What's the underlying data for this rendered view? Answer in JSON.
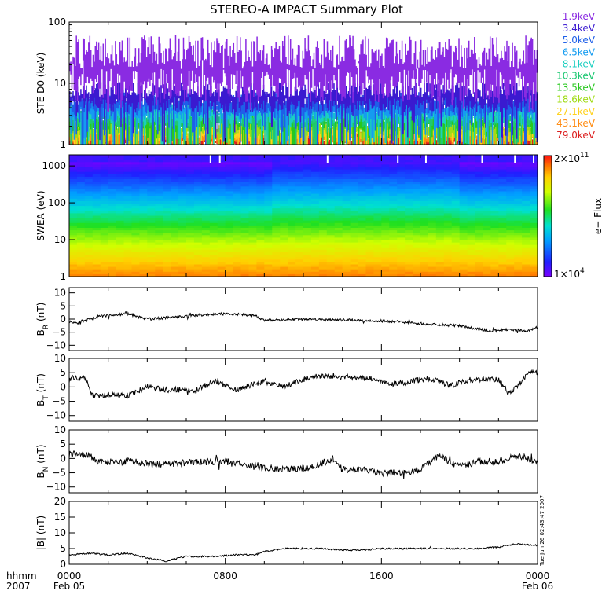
{
  "title": "STEREO-A IMPACT Summary Plot",
  "timestamp": "Tue Jun 26 02:43:47 2007",
  "chart_data": [
    {
      "type": "line",
      "ylabel": "STE D0 (keV)",
      "yscale": "log",
      "ylim": [
        1,
        100
      ],
      "ytick_labels": [
        "1",
        "10",
        "100"
      ],
      "series": [
        {
          "name": "1.9keV",
          "color": "#8a2be2",
          "level": 25,
          "spread": 0.55,
          "dips": 0.1
        },
        {
          "name": "3.4keV",
          "color": "#3a1ad0",
          "level": 7,
          "spread": 0.25,
          "dips": 0.15
        },
        {
          "name": "5.0keV",
          "color": "#1e5fe8",
          "level": 5.2,
          "spread": 0.2,
          "dips": 0.2
        },
        {
          "name": "6.5keV",
          "color": "#159cf0",
          "level": 4.3,
          "spread": 0.18,
          "dips": 0.22
        },
        {
          "name": "8.1keV",
          "color": "#1ccfc0",
          "level": 3.6,
          "spread": 0.17,
          "dips": 0.25
        },
        {
          "name": "10.3keV",
          "color": "#1ec873",
          "level": 3.0,
          "spread": 0.16,
          "dips": 0.28
        },
        {
          "name": "13.5keV",
          "color": "#28c81e",
          "level": 2.5,
          "spread": 0.15,
          "dips": 0.3
        },
        {
          "name": "18.6keV",
          "color": "#a0dc14",
          "level": 2.0,
          "spread": 0.15,
          "dips": 0.3
        },
        {
          "name": "27.1keV",
          "color": "#ffd21e",
          "level": 1.7,
          "spread": 0.15,
          "dips": 0.3
        },
        {
          "name": "43.1keV",
          "color": "#ff8c14",
          "level": 1.45,
          "spread": 0.15,
          "dips": 0.35
        },
        {
          "name": "79.0keV",
          "color": "#dc1e1e",
          "level": 1.25,
          "spread": 0.15,
          "dips": 0.4
        }
      ]
    },
    {
      "type": "heatmap",
      "ylabel": "SWEA (eV)",
      "yscale": "log",
      "ylim": [
        1,
        2000
      ],
      "ytick_labels": [
        "1",
        "10",
        "100",
        "1000"
      ],
      "colorbar": {
        "label": "e− Flux",
        "max_label": "2×10",
        "max_exp": "11",
        "min_label": "1×10",
        "min_exp": "4"
      }
    },
    {
      "type": "line",
      "ylabel": "B",
      "ylabel_sub": "R",
      "ylabel_unit": "(nT)",
      "ylim": [
        -12,
        12
      ],
      "yticks": [
        -10,
        -5,
        0,
        5,
        10
      ],
      "ytick_labels": [
        "−10",
        "−5",
        "0",
        "5",
        "10"
      ],
      "knots": [
        [
          0,
          -1
        ],
        [
          0.5,
          -1.5
        ],
        [
          1.5,
          1
        ],
        [
          3,
          2
        ],
        [
          4,
          0
        ],
        [
          5,
          0.5
        ],
        [
          6.5,
          1.5
        ],
        [
          8,
          2
        ],
        [
          9.5,
          1.5
        ],
        [
          10,
          -0.5
        ],
        [
          12,
          0
        ],
        [
          15,
          -0.5
        ],
        [
          17,
          -1
        ],
        [
          18.5,
          -2
        ],
        [
          20,
          -2.5
        ],
        [
          21.5,
          -4.5
        ],
        [
          22.5,
          -4
        ],
        [
          23.5,
          -4.5
        ],
        [
          24,
          -3
        ]
      ],
      "noise": 0.5,
      "seed": 11
    },
    {
      "type": "line",
      "ylabel": "B",
      "ylabel_sub": "T",
      "ylabel_unit": "(nT)",
      "ylim": [
        -12,
        10
      ],
      "yticks": [
        -10,
        -5,
        0,
        5,
        10
      ],
      "ytick_labels": [
        "−10",
        "−5",
        "0",
        "5",
        "10"
      ],
      "knots": [
        [
          0,
          3
        ],
        [
          0.8,
          3.5
        ],
        [
          1.2,
          -3
        ],
        [
          3,
          -3
        ],
        [
          4,
          0
        ],
        [
          5,
          -1
        ],
        [
          6.5,
          -1
        ],
        [
          7.5,
          2
        ],
        [
          8.5,
          -1
        ],
        [
          10,
          2
        ],
        [
          11,
          0
        ],
        [
          12.5,
          4
        ],
        [
          14,
          3.5
        ],
        [
          15.5,
          3
        ],
        [
          16.5,
          1
        ],
        [
          17.5,
          2
        ],
        [
          18.5,
          3
        ],
        [
          19.5,
          0.5
        ],
        [
          20.5,
          2.5
        ],
        [
          22,
          2.5
        ],
        [
          22.5,
          -2
        ],
        [
          23,
          0
        ],
        [
          23.5,
          5
        ],
        [
          24,
          5
        ]
      ],
      "noise": 1.0,
      "seed": 23
    },
    {
      "type": "line",
      "ylabel": "B",
      "ylabel_sub": "N",
      "ylabel_unit": "(nT)",
      "ylim": [
        -12,
        10
      ],
      "yticks": [
        -10,
        -5,
        0,
        5,
        10
      ],
      "ytick_labels": [
        "−10",
        "−5",
        "0",
        "5",
        "10"
      ],
      "knots": [
        [
          0,
          1.5
        ],
        [
          1,
          1.5
        ],
        [
          1.5,
          -1.5
        ],
        [
          3,
          -1
        ],
        [
          4.5,
          -2
        ],
        [
          6,
          -1.5
        ],
        [
          8,
          -1
        ],
        [
          9.5,
          -3
        ],
        [
          11,
          -4
        ],
        [
          12.5,
          -3
        ],
        [
          13.5,
          0
        ],
        [
          14,
          -4
        ],
        [
          15,
          -4
        ],
        [
          16,
          -5
        ],
        [
          17,
          -5
        ],
        [
          18,
          -4
        ],
        [
          19,
          1
        ],
        [
          20,
          -3
        ],
        [
          21,
          -1
        ],
        [
          22,
          -1
        ],
        [
          23,
          1
        ],
        [
          24,
          -1
        ]
      ],
      "noise": 1.2,
      "seed": 37
    },
    {
      "type": "line",
      "ylabel": "|B| (nT)",
      "ylim": [
        0,
        20
      ],
      "yticks": [
        0,
        5,
        10,
        15,
        20
      ],
      "ytick_labels": [
        "0",
        "5",
        "10",
        "15",
        "20"
      ],
      "knots": [
        [
          0,
          3
        ],
        [
          1,
          3.5
        ],
        [
          2,
          3
        ],
        [
          3,
          3.5
        ],
        [
          4,
          2
        ],
        [
          5,
          1
        ],
        [
          6,
          2.5
        ],
        [
          7.5,
          2.5
        ],
        [
          8.5,
          3
        ],
        [
          9.5,
          3
        ],
        [
          10,
          4
        ],
        [
          11,
          5
        ],
        [
          12,
          5
        ],
        [
          13,
          5
        ],
        [
          14,
          4.5
        ],
        [
          15,
          4.5
        ],
        [
          16,
          5
        ],
        [
          17,
          5
        ],
        [
          18,
          5
        ],
        [
          19,
          5
        ],
        [
          20,
          5
        ],
        [
          21,
          5
        ],
        [
          22,
          5.5
        ],
        [
          23,
          6.5
        ],
        [
          24,
          6
        ]
      ],
      "noise": 0.25,
      "seed": 51
    }
  ],
  "xaxis": {
    "xlim_hours": [
      0,
      24
    ],
    "major_ticks": [
      0,
      8,
      16,
      24
    ],
    "major_labels": [
      "0000",
      "0800",
      "1600",
      "0000"
    ],
    "date_labels": {
      "start": "Feb 05",
      "end": "Feb 06"
    },
    "left_labels": {
      "format": "hhmm",
      "year": "2007"
    }
  }
}
